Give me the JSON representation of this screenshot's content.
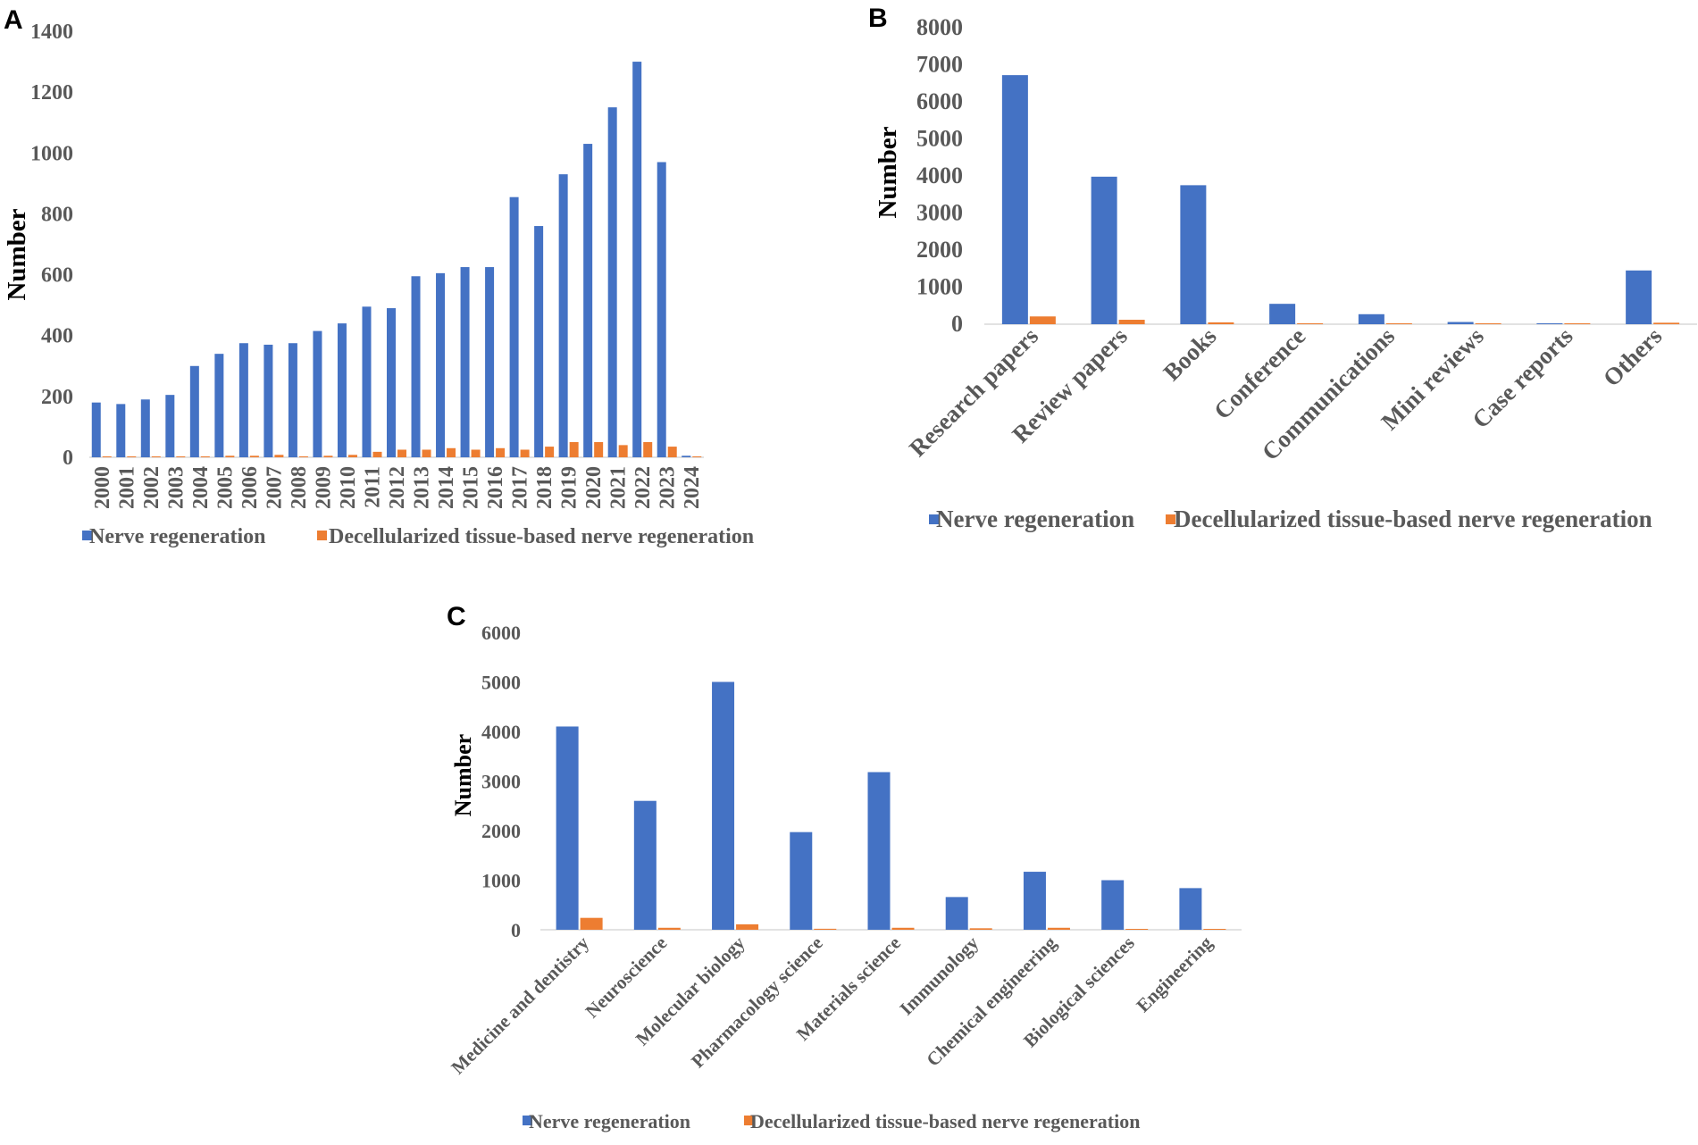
{
  "colors": {
    "nerve": "#4472C4",
    "decell": "#ED7D31",
    "tick": "#595959"
  },
  "chart_data": [
    {
      "panel": "A",
      "type": "bar",
      "ylabel": "Number",
      "ylim": [
        0,
        1400
      ],
      "yticks": [
        0,
        200,
        400,
        600,
        800,
        1000,
        1200,
        1400
      ],
      "categories": [
        "2000",
        "2001",
        "2002",
        "2003",
        "2004",
        "2005",
        "2006",
        "2007",
        "2008",
        "2009",
        "2010",
        "2011",
        "2012",
        "2013",
        "2014",
        "2015",
        "2016",
        "2017",
        "2018",
        "2019",
        "2020",
        "2021",
        "2022",
        "2023",
        "2024"
      ],
      "series": [
        {
          "name": "Nerve regeneration",
          "values": [
            180,
            175,
            190,
            205,
            300,
            340,
            375,
            370,
            375,
            415,
            440,
            495,
            490,
            595,
            605,
            625,
            625,
            855,
            760,
            930,
            1030,
            1150,
            1300,
            970,
            5
          ]
        },
        {
          "name": "Decellularized tissue-based nerve regeneration",
          "values": [
            1,
            1,
            2,
            2,
            3,
            5,
            5,
            8,
            3,
            5,
            8,
            18,
            25,
            25,
            30,
            25,
            30,
            25,
            35,
            50,
            50,
            40,
            50,
            35,
            1
          ]
        }
      ],
      "legend": "bottom"
    },
    {
      "panel": "B",
      "type": "bar",
      "ylabel": "Number",
      "ylim": [
        0,
        8000
      ],
      "yticks": [
        0,
        1000,
        2000,
        3000,
        4000,
        5000,
        6000,
        7000,
        8000
      ],
      "categories": [
        "Research papers",
        "Review papers",
        "Books",
        "Conference",
        "Communications",
        "Mini reviews",
        "Case reports",
        "Others"
      ],
      "series": [
        {
          "name": "Nerve regeneration",
          "values": [
            6720,
            3980,
            3750,
            550,
            270,
            60,
            15,
            1450
          ]
        },
        {
          "name": "Decellularized tissue-based nerve regeneration",
          "values": [
            210,
            120,
            50,
            20,
            15,
            10,
            5,
            40
          ]
        }
      ],
      "legend": "bottom"
    },
    {
      "panel": "C",
      "type": "bar",
      "ylabel": "Number",
      "ylim": [
        0,
        6000
      ],
      "yticks": [
        0,
        1000,
        2000,
        3000,
        4000,
        5000,
        6000
      ],
      "categories": [
        "Medicine and dentistry",
        "Neuroscience",
        "Molecular biology",
        "Pharmacology science",
        "Materials science",
        "Immunology",
        "Chemical engineering",
        "Biological sciences",
        "Engineering"
      ],
      "series": [
        {
          "name": "Nerve regeneration",
          "values": [
            4100,
            2600,
            5000,
            1970,
            3180,
            660,
            1170,
            1000,
            840
          ]
        },
        {
          "name": "Decellularized tissue-based nerve regeneration",
          "values": [
            240,
            40,
            110,
            20,
            40,
            30,
            40,
            10,
            10
          ]
        }
      ],
      "legend": "bottom"
    }
  ]
}
